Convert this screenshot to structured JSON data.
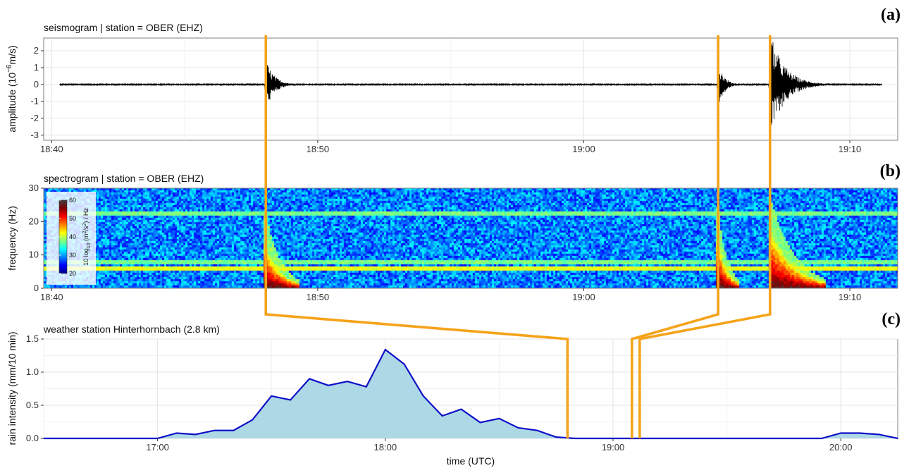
{
  "chart_data": [
    {
      "type": "line",
      "panel_letter": "(a)",
      "title": "seismogram | station = OBER (EHZ)",
      "ylabel": "amplitude (10^-6 m/s)",
      "ylabel_parts": {
        "base": "amplitude (10",
        "sup": "−6",
        "rest": "m/s)"
      },
      "xlabel": "",
      "x_ticks": [
        "18:40",
        "18:50",
        "19:00",
        "19:10"
      ],
      "x_tick_minutes": [
        0,
        10,
        20,
        30
      ],
      "xlim_minutes": [
        -0.3,
        31.8
      ],
      "y_ticks": [
        "-3",
        "-2",
        "-1",
        "0",
        "1",
        "2"
      ],
      "y_tick_values": [
        -3,
        -2,
        -1,
        0,
        1,
        2
      ],
      "ylim": [
        -3.3,
        2.75
      ],
      "grid": true,
      "noise_level": 0.04,
      "events": [
        {
          "t_minutes": 8.05,
          "amplitude": 1.5,
          "duration_minutes": 0.7
        },
        {
          "t_minutes": 25.05,
          "amplitude": 1.35,
          "duration_minutes": 0.5
        },
        {
          "t_minutes": 27.0,
          "amplitude": 3.1,
          "duration_minutes": 1.2
        }
      ]
    },
    {
      "type": "heatmap",
      "panel_letter": "(b)",
      "title": "spectrogram | station = OBER (EHZ)",
      "ylabel": "frequency (Hz)",
      "xlabel": "",
      "x_ticks": [
        "18:40",
        "18:50",
        "19:00",
        "19:10"
      ],
      "x_tick_minutes": [
        0,
        10,
        20,
        30
      ],
      "xlim_minutes": [
        -0.3,
        31.8
      ],
      "y_ticks": [
        "0",
        "10",
        "20",
        "30"
      ],
      "y_tick_values": [
        0,
        10,
        20,
        30
      ],
      "ylim": [
        0,
        30
      ],
      "colorbar": {
        "label": "10 log10 (m^2/s^2) / Hz",
        "label_parts": {
          "a": "10 log",
          "sub": "10",
          "b": " (m",
          "sup": "2",
          "c": "/s",
          "sup2": "2",
          "d": ") / Hz"
        },
        "ticks": [
          "20",
          "30",
          "40",
          "50",
          "60"
        ],
        "tick_values": [
          20,
          30,
          40,
          50,
          60
        ],
        "range": [
          20,
          60
        ],
        "colors": [
          "#000080",
          "#0000ff",
          "#0080ff",
          "#00ffff",
          "#80ff80",
          "#ffff00",
          "#ff8000",
          "#ff0000",
          "#800000",
          "#404040"
        ]
      },
      "background_level_db": 29,
      "constant_lines_hz": [
        5.9,
        22.3,
        7.8
      ],
      "events": [
        {
          "t_minutes": 8.05,
          "max_freq_hz": 13,
          "duration_minutes": 0.8
        },
        {
          "t_minutes": 25.05,
          "max_freq_hz": 14,
          "duration_minutes": 0.5
        },
        {
          "t_minutes": 27.0,
          "max_freq_hz": 18,
          "duration_minutes": 1.3
        }
      ],
      "legend_position": "top-left"
    },
    {
      "type": "area",
      "panel_letter": "(c)",
      "title": "weather station Hinterhornbach (2.8 km)",
      "ylabel": "rain intensity (mm/10 min)",
      "xlabel": "time (UTC)",
      "x_ticks": [
        "17:00",
        "18:00",
        "19:00",
        "20:00"
      ],
      "x_tick_hours": [
        17,
        18,
        19,
        20
      ],
      "xlim_hours": [
        16.5,
        20.25
      ],
      "y_ticks": [
        "0.0",
        "0.5",
        "1.0",
        "1.5"
      ],
      "y_tick_values": [
        0,
        0.5,
        1.0,
        1.5
      ],
      "ylim": [
        0,
        1.5
      ],
      "grid": true,
      "line_color": "#1010c8",
      "fill_color": "#add8e6",
      "series": [
        {
          "x_hours": [
            16.5,
            16.6667,
            16.8333,
            17.0,
            17.0833,
            17.1667,
            17.25,
            17.3333,
            17.4167,
            17.5,
            17.5833,
            17.6667,
            17.75,
            17.8333,
            17.9167,
            18.0,
            18.0833,
            18.1667,
            18.25,
            18.3333,
            18.4167,
            18.5,
            18.5833,
            18.6667,
            18.75,
            18.8333,
            19.0,
            19.25,
            19.5,
            19.75,
            19.9167,
            20.0,
            20.0833,
            20.1667,
            20.25
          ],
          "values": [
            0,
            0,
            0,
            0,
            0.08,
            0.06,
            0.12,
            0.12,
            0.28,
            0.64,
            0.58,
            0.9,
            0.8,
            0.86,
            0.78,
            1.34,
            1.12,
            0.64,
            0.34,
            0.44,
            0.24,
            0.3,
            0.16,
            0.12,
            0.02,
            0,
            0,
            0,
            0,
            0,
            0,
            0.08,
            0.08,
            0.06,
            0
          ]
        }
      ]
    }
  ],
  "connectors": {
    "color": "#f5a31a",
    "links": [
      {
        "seis_minutes": 8.05,
        "rain_hours": 18.8
      },
      {
        "seis_minutes": 25.05,
        "rain_hours": 19.083
      },
      {
        "seis_minutes": 27.0,
        "rain_hours": 19.117
      }
    ]
  }
}
